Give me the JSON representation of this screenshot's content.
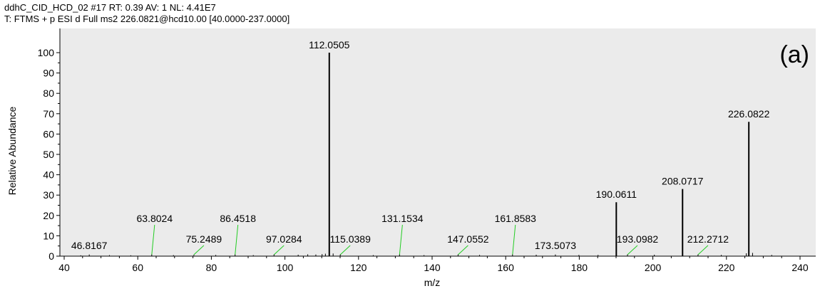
{
  "header": {
    "line1": "ddhC_CID_HCD_02 #17 RT: 0.39 AV: 1 NL: 4.41E7",
    "line2": "T: FTMS + p ESI d Full ms2 226.0821@hcd10.00 [40.0000-237.0000]"
  },
  "panel_label": "(a)",
  "colors": {
    "plot_background": "#ebebeb",
    "peak": "#000000",
    "label_leader": "#22cc22"
  },
  "chart_data": {
    "type": "bar",
    "xlabel": "m/z",
    "ylabel": "Relative Abundance",
    "xlim": [
      40,
      240
    ],
    "ylim": [
      0,
      100
    ],
    "x_ticks": [
      40,
      60,
      80,
      100,
      120,
      140,
      160,
      180,
      200,
      220,
      240
    ],
    "y_ticks": [
      0,
      10,
      20,
      30,
      40,
      50,
      60,
      70,
      80,
      90,
      100
    ],
    "grid": false,
    "peaks": [
      {
        "mz": 46.8167,
        "intensity": 0.8,
        "label": "46.8167",
        "leader": false
      },
      {
        "mz": 63.8024,
        "intensity": 0.8,
        "label": "63.8024",
        "leader": true
      },
      {
        "mz": 75.2489,
        "intensity": 0.6,
        "label": "75.2489",
        "leader": true
      },
      {
        "mz": 86.4518,
        "intensity": 0.8,
        "label": "86.4518",
        "leader": true
      },
      {
        "mz": 97.0284,
        "intensity": 0.8,
        "label": "97.0284",
        "leader": true
      },
      {
        "mz": 112.0505,
        "intensity": 100,
        "label": "112.0505",
        "leader": false
      },
      {
        "mz": 115.0389,
        "intensity": 0.8,
        "label": "115.0389",
        "leader": true
      },
      {
        "mz": 131.1534,
        "intensity": 0.8,
        "label": "131.1534",
        "leader": true
      },
      {
        "mz": 147.0552,
        "intensity": 0.8,
        "label": "147.0552",
        "leader": true
      },
      {
        "mz": 161.8583,
        "intensity": 0.8,
        "label": "161.8583",
        "leader": true
      },
      {
        "mz": 173.5073,
        "intensity": 0.8,
        "label": "173.5073",
        "leader": false
      },
      {
        "mz": 190.0611,
        "intensity": 26.5,
        "label": "190.0611",
        "leader": false
      },
      {
        "mz": 193.0982,
        "intensity": 0.8,
        "label": "193.0982",
        "leader": true
      },
      {
        "mz": 208.0717,
        "intensity": 33.0,
        "label": "208.0717",
        "leader": false
      },
      {
        "mz": 212.2712,
        "intensity": 0.8,
        "label": "212.2712",
        "leader": true
      },
      {
        "mz": 226.0822,
        "intensity": 66.0,
        "label": "226.0822",
        "leader": false
      }
    ],
    "minor_peaks": [
      {
        "mz": 44.5,
        "intensity": 0.4
      },
      {
        "mz": 52.3,
        "intensity": 0.5
      },
      {
        "mz": 58.1,
        "intensity": 0.4
      },
      {
        "mz": 69.7,
        "intensity": 0.5
      },
      {
        "mz": 81.2,
        "intensity": 0.6
      },
      {
        "mz": 91.4,
        "intensity": 0.5
      },
      {
        "mz": 103.6,
        "intensity": 0.7
      },
      {
        "mz": 106.2,
        "intensity": 0.9
      },
      {
        "mz": 108.4,
        "intensity": 0.8
      },
      {
        "mz": 110.1,
        "intensity": 1.0
      },
      {
        "mz": 111.0,
        "intensity": 1.2
      },
      {
        "mz": 113.1,
        "intensity": 1.3
      },
      {
        "mz": 124.0,
        "intensity": 0.5
      },
      {
        "mz": 137.8,
        "intensity": 0.5
      },
      {
        "mz": 152.9,
        "intensity": 0.6
      },
      {
        "mz": 168.3,
        "intensity": 0.7
      },
      {
        "mz": 179.9,
        "intensity": 0.6
      },
      {
        "mz": 185.1,
        "intensity": 0.6
      },
      {
        "mz": 200.4,
        "intensity": 0.7
      },
      {
        "mz": 218.6,
        "intensity": 0.6
      },
      {
        "mz": 225.4,
        "intensity": 1.4
      },
      {
        "mz": 227.1,
        "intensity": 1.6
      },
      {
        "mz": 232.3,
        "intensity": 0.6
      }
    ]
  }
}
